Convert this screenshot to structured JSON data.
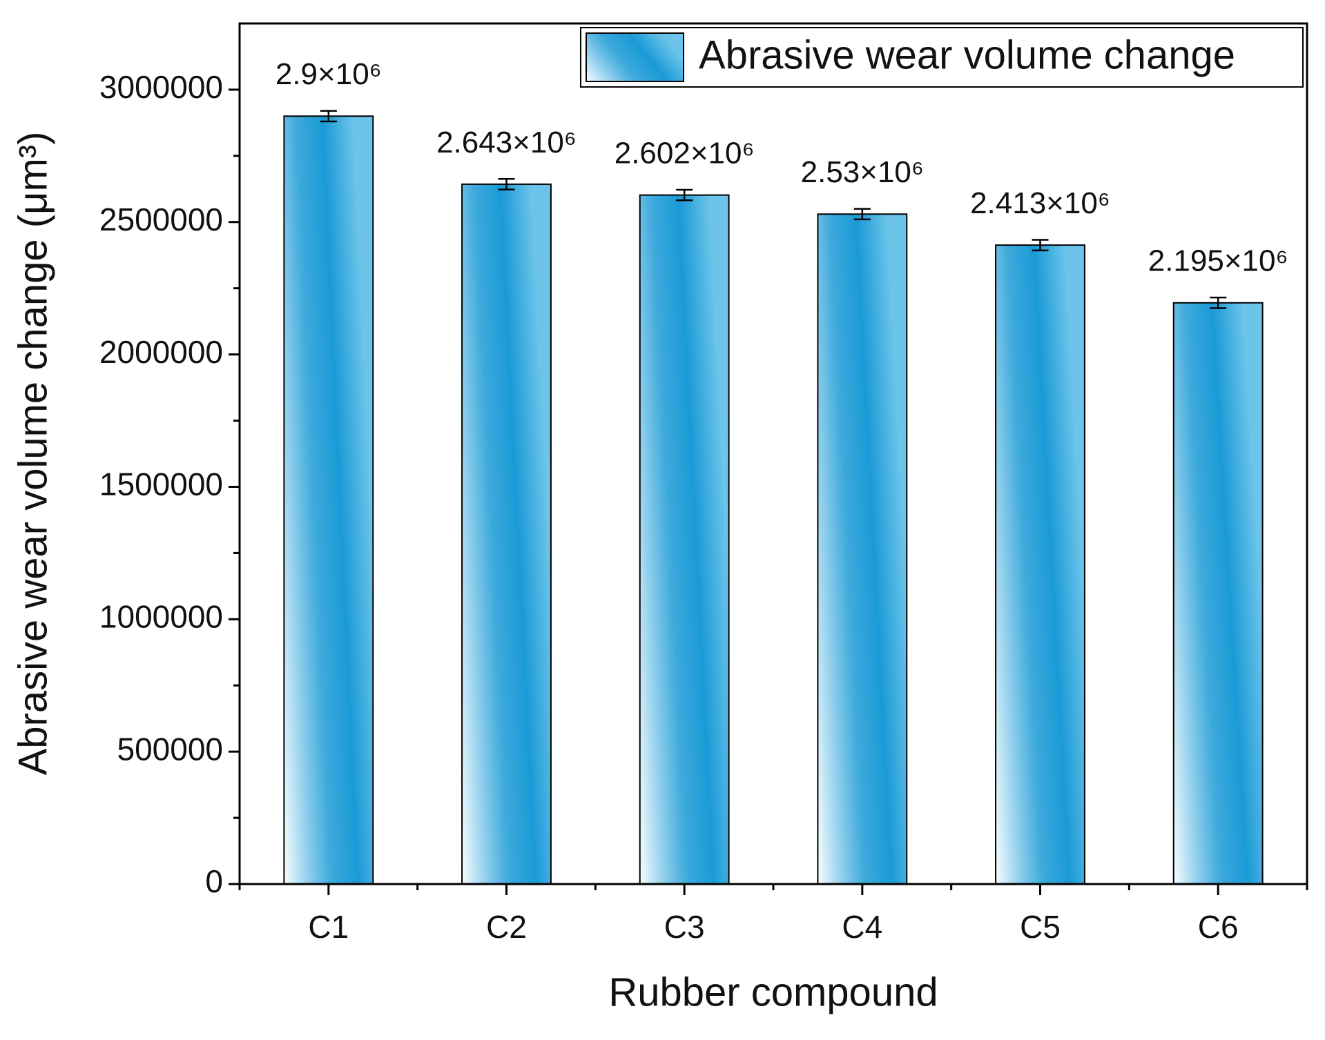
{
  "chart_data": {
    "type": "bar",
    "x_label": "Rubber compound",
    "y_label": "Abrasive wear volume change (μm³)",
    "categories": [
      "C1",
      "C2",
      "C3",
      "C4",
      "C5",
      "C6"
    ],
    "series": [
      {
        "name": "Abrasive wear volume change",
        "color": "#1a9ad6",
        "values": [
          2900000,
          2643000,
          2602000,
          2530000,
          2413000,
          2195000
        ],
        "errors": [
          20000,
          20000,
          20000,
          20000,
          20000,
          20000
        ],
        "value_labels": [
          "2.9×10⁶",
          "2.643×10⁶",
          "2.602×10⁶",
          "2.53×10⁶",
          "2.413×10⁶",
          "2.195×10⁶"
        ]
      }
    ],
    "ylim": [
      0,
      3250000
    ],
    "yticks": [
      0,
      500000,
      1000000,
      1500000,
      2000000,
      2500000,
      3000000
    ],
    "grid": false,
    "legend": "top-right"
  }
}
